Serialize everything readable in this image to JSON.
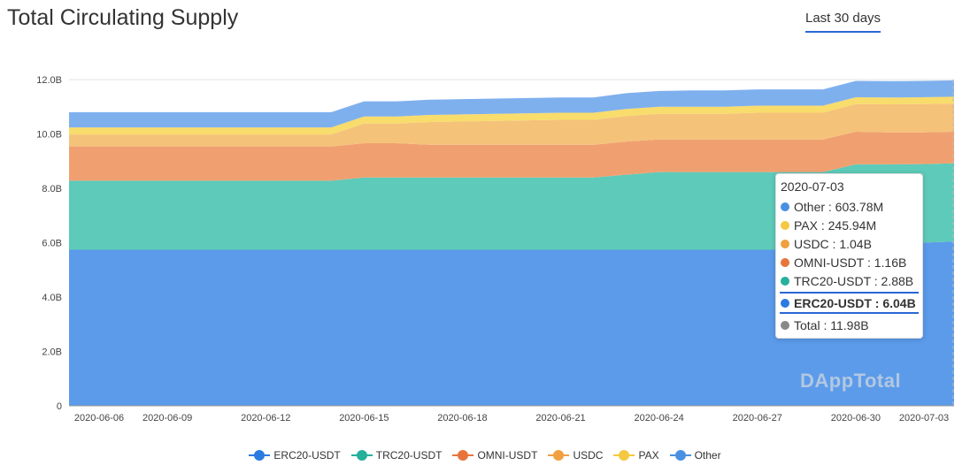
{
  "header": {
    "title": "Total Circulating Supply",
    "range_label": "Last 30 days"
  },
  "watermark": "DAppTotal",
  "colors": {
    "ERC20-USDT": "#5b9bea",
    "TRC20-USDT": "#5ecab9",
    "OMNI-USDT": "#f0a070",
    "USDC": "#f5c27a",
    "PAX": "#f8dc6c",
    "Other": "#7fb0ee",
    "accent": "#2a66d6"
  },
  "tooltip": {
    "date": "2020-07-03",
    "rows": [
      {
        "label": "Other : 603.78M",
        "color": "#4a90e2",
        "highlight": false
      },
      {
        "label": "PAX : 245.94M",
        "color": "#f5c842",
        "highlight": false
      },
      {
        "label": "USDC : 1.04B",
        "color": "#f0a040",
        "highlight": false
      },
      {
        "label": "OMNI-USDT : 1.16B",
        "color": "#e8743b",
        "highlight": false
      },
      {
        "label": "TRC20-USDT : 2.88B",
        "color": "#26b09b",
        "highlight": false
      },
      {
        "label": "ERC20-USDT : 6.04B",
        "color": "#2a7ae2",
        "highlight": true
      },
      {
        "label": "Total : 11.98B",
        "color": "#888888",
        "highlight": false
      }
    ]
  },
  "legend": [
    {
      "label": "ERC20-USDT",
      "color": "#2a7ae2"
    },
    {
      "label": "TRC20-USDT",
      "color": "#26b09b"
    },
    {
      "label": "OMNI-USDT",
      "color": "#e8743b"
    },
    {
      "label": "USDC",
      "color": "#f0a040"
    },
    {
      "label": "PAX",
      "color": "#f5c842"
    },
    {
      "label": "Other",
      "color": "#4a90e2"
    }
  ],
  "chart_data": {
    "type": "area",
    "stacked": true,
    "y_tick_labels": [
      "0",
      "2.0B",
      "4.0B",
      "6.0B",
      "8.0B",
      "10.0B",
      "12.0B"
    ],
    "x_tick_labels": [
      "2020-06-06",
      "2020-06-09",
      "2020-06-12",
      "2020-06-15",
      "2020-06-18",
      "2020-06-21",
      "2020-06-24",
      "2020-06-27",
      "2020-06-30",
      "2020-07-03"
    ],
    "ylim": [
      0,
      12
    ],
    "y_unit": "B",
    "grid": true,
    "legend_position": "bottom",
    "x": [
      "2020-06-06",
      "2020-06-07",
      "2020-06-08",
      "2020-06-09",
      "2020-06-10",
      "2020-06-11",
      "2020-06-12",
      "2020-06-13",
      "2020-06-14",
      "2020-06-15",
      "2020-06-16",
      "2020-06-17",
      "2020-06-18",
      "2020-06-19",
      "2020-06-20",
      "2020-06-21",
      "2020-06-22",
      "2020-06-23",
      "2020-06-24",
      "2020-06-25",
      "2020-06-26",
      "2020-06-27",
      "2020-06-28",
      "2020-06-29",
      "2020-06-30",
      "2020-07-01",
      "2020-07-02",
      "2020-07-03"
    ],
    "series": [
      {
        "name": "ERC20-USDT",
        "values": [
          5.74,
          5.74,
          5.74,
          5.74,
          5.74,
          5.74,
          5.74,
          5.74,
          5.74,
          5.74,
          5.74,
          5.74,
          5.74,
          5.74,
          5.74,
          5.74,
          5.74,
          5.74,
          5.74,
          5.74,
          5.74,
          5.74,
          5.74,
          5.74,
          5.96,
          5.98,
          6.0,
          6.04
        ]
      },
      {
        "name": "TRC20-USDT",
        "values": [
          2.54,
          2.54,
          2.54,
          2.54,
          2.54,
          2.54,
          2.54,
          2.54,
          2.54,
          2.66,
          2.66,
          2.66,
          2.66,
          2.66,
          2.66,
          2.66,
          2.66,
          2.76,
          2.86,
          2.86,
          2.86,
          2.86,
          2.86,
          2.86,
          2.92,
          2.9,
          2.89,
          2.88
        ]
      },
      {
        "name": "OMNI-USDT",
        "values": [
          1.26,
          1.26,
          1.26,
          1.26,
          1.26,
          1.26,
          1.26,
          1.26,
          1.26,
          1.26,
          1.26,
          1.2,
          1.2,
          1.2,
          1.2,
          1.2,
          1.2,
          1.22,
          1.2,
          1.2,
          1.2,
          1.2,
          1.2,
          1.2,
          1.2,
          1.18,
          1.17,
          1.16
        ]
      },
      {
        "name": "USDC",
        "values": [
          0.44,
          0.44,
          0.44,
          0.44,
          0.44,
          0.44,
          0.44,
          0.44,
          0.44,
          0.72,
          0.72,
          0.84,
          0.86,
          0.88,
          0.9,
          0.92,
          0.92,
          0.94,
          0.94,
          0.94,
          0.94,
          0.98,
          0.98,
          0.98,
          1.02,
          1.03,
          1.04,
          1.04
        ]
      },
      {
        "name": "PAX",
        "values": [
          0.26,
          0.26,
          0.26,
          0.26,
          0.26,
          0.26,
          0.26,
          0.26,
          0.26,
          0.26,
          0.26,
          0.26,
          0.26,
          0.26,
          0.26,
          0.26,
          0.26,
          0.26,
          0.26,
          0.26,
          0.26,
          0.26,
          0.26,
          0.26,
          0.25,
          0.25,
          0.25,
          0.25
        ]
      },
      {
        "name": "Other",
        "values": [
          0.56,
          0.56,
          0.56,
          0.56,
          0.56,
          0.56,
          0.56,
          0.56,
          0.56,
          0.56,
          0.56,
          0.56,
          0.56,
          0.56,
          0.56,
          0.56,
          0.56,
          0.58,
          0.58,
          0.6,
          0.6,
          0.6,
          0.6,
          0.6,
          0.6,
          0.6,
          0.6,
          0.6
        ]
      }
    ],
    "hover": {
      "date": "2020-07-03",
      "series": "ERC20-USDT"
    }
  }
}
